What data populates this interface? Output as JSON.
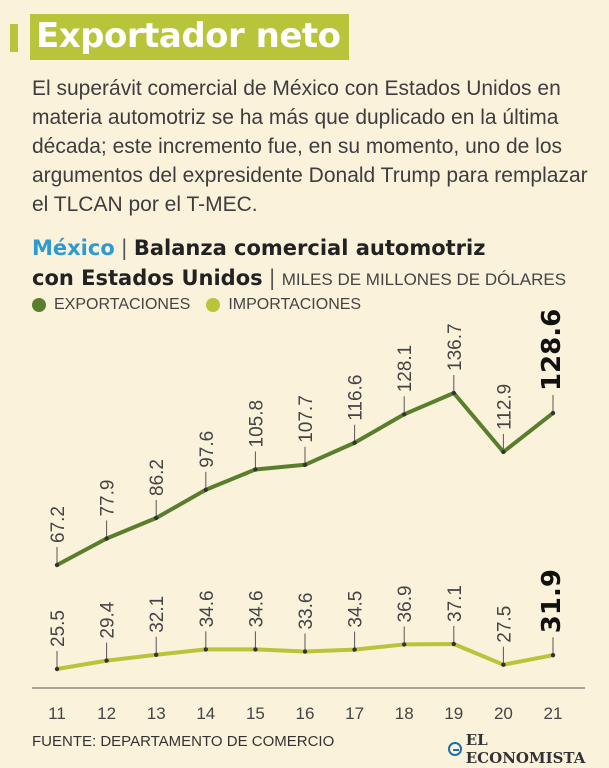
{
  "header": {
    "title": "Exportador neto",
    "intro": "El superávit comercial de México con Estados Unidos en materia automotriz se ha más que duplicado en la última década; este incremento fue, en su momento, uno de los argumentos del expresidente Donald Trump para remplazar el TLCAN por el T-MEC."
  },
  "chart_header": {
    "country": "México",
    "separator": "|",
    "title_part1": "Balanza comercial automotriz",
    "title_part2": "con Estados Unidos",
    "unit": "MILES DE MILLONES DE DÓLARES"
  },
  "legend": {
    "exports": "EXPORTACIONES",
    "imports": "IMPORTACIONES"
  },
  "colors": {
    "exports": "#5a7f2c",
    "imports": "#b8c43a",
    "title_background": "#b8c43a",
    "country": "#2e9ad0",
    "background": "#fbf2dc"
  },
  "chart_data": {
    "type": "line",
    "x": [
      "11",
      "12",
      "13",
      "14",
      "15",
      "16",
      "17",
      "18",
      "19",
      "20",
      "21"
    ],
    "series": [
      {
        "name": "EXPORTACIONES",
        "values": [
          67.2,
          77.9,
          86.2,
          97.6,
          105.8,
          107.7,
          116.6,
          128.1,
          136.7,
          112.9,
          128.6
        ],
        "labels": [
          "67.2",
          "77.9",
          "86.2",
          "97.6",
          "105.8",
          "107.7",
          "116.6",
          "128.1",
          "136.7",
          "112.9",
          "128.6"
        ]
      },
      {
        "name": "IMPORTACIONES",
        "values": [
          25.5,
          29.4,
          32.1,
          34.6,
          34.6,
          33.6,
          34.5,
          36.9,
          37.1,
          27.5,
          31.9
        ],
        "labels": [
          "25.5",
          "29.4",
          "32.1",
          "34.6",
          "34.6",
          "33.6",
          "34.5",
          "36.9",
          "37.1",
          "27.5",
          "31.9"
        ]
      }
    ],
    "highlight_last": true,
    "grid": false,
    "legend_position": "top-left"
  },
  "footer": {
    "source": "FUENTE: DEPARTAMENTO DE COMERCIO",
    "logo": "EL ECONOMISTA"
  }
}
